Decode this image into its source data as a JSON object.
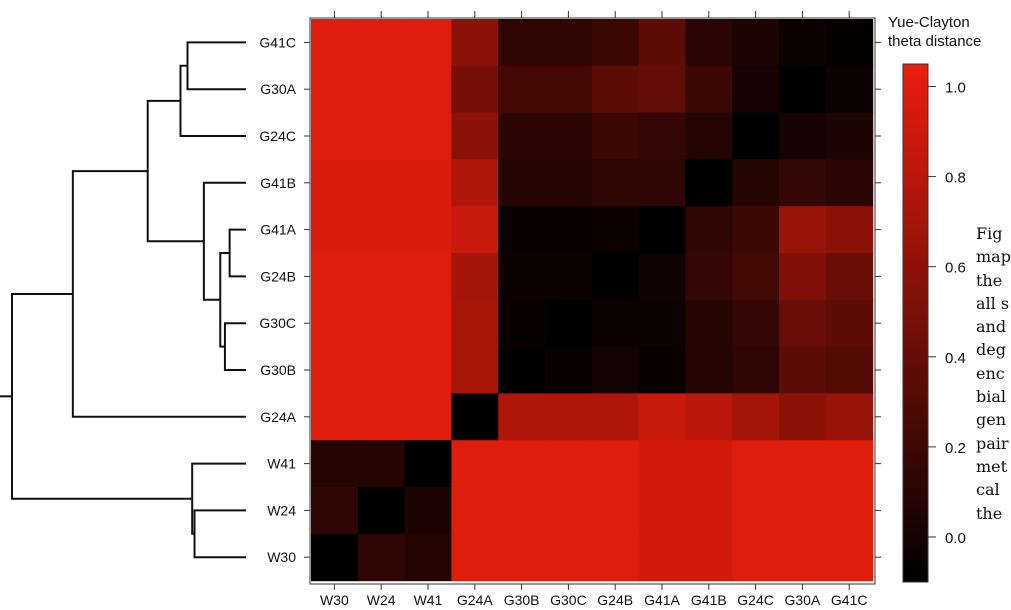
{
  "chart_data": {
    "type": "heatmap",
    "title": "",
    "xlabel": "",
    "ylabel": "",
    "columns": [
      "W30",
      "W24",
      "W41",
      "G24A",
      "G30B",
      "G30C",
      "G24B",
      "G41A",
      "G41B",
      "G24C",
      "G30A",
      "G41C"
    ],
    "rows": [
      "G41C",
      "G30A",
      "G24C",
      "G41B",
      "G41A",
      "G24B",
      "G30C",
      "G30B",
      "G24A",
      "W41",
      "W24",
      "W30"
    ],
    "values": [
      [
        0.95,
        0.95,
        0.95,
        0.6,
        0.2,
        0.2,
        0.25,
        0.4,
        0.18,
        0.12,
        0.05,
        0.02
      ],
      [
        0.95,
        0.95,
        0.95,
        0.5,
        0.28,
        0.28,
        0.4,
        0.42,
        0.25,
        0.1,
        0.0,
        0.05
      ],
      [
        0.95,
        0.95,
        0.95,
        0.6,
        0.18,
        0.18,
        0.25,
        0.22,
        0.15,
        0.0,
        0.1,
        0.12
      ],
      [
        0.93,
        0.93,
        0.93,
        0.75,
        0.15,
        0.15,
        0.2,
        0.2,
        0.0,
        0.15,
        0.22,
        0.18
      ],
      [
        0.93,
        0.93,
        0.93,
        0.85,
        0.04,
        0.04,
        0.06,
        0.0,
        0.2,
        0.25,
        0.65,
        0.6
      ],
      [
        0.95,
        0.95,
        0.95,
        0.7,
        0.06,
        0.05,
        0.0,
        0.07,
        0.22,
        0.28,
        0.55,
        0.45
      ],
      [
        0.95,
        0.95,
        0.95,
        0.72,
        0.04,
        0.0,
        0.06,
        0.05,
        0.16,
        0.22,
        0.45,
        0.4
      ],
      [
        0.95,
        0.95,
        0.95,
        0.72,
        0.0,
        0.04,
        0.08,
        0.04,
        0.16,
        0.2,
        0.4,
        0.35
      ],
      [
        0.95,
        0.95,
        0.95,
        0.0,
        0.75,
        0.75,
        0.75,
        0.85,
        0.8,
        0.7,
        0.6,
        0.65
      ],
      [
        0.15,
        0.15,
        0.0,
        0.95,
        0.95,
        0.95,
        0.95,
        0.9,
        0.9,
        0.95,
        0.95,
        0.95
      ],
      [
        0.2,
        0.0,
        0.12,
        0.95,
        0.95,
        0.95,
        0.95,
        0.9,
        0.9,
        0.95,
        0.95,
        0.95
      ],
      [
        0.0,
        0.2,
        0.15,
        0.95,
        0.95,
        0.95,
        0.95,
        0.9,
        0.9,
        0.95,
        0.95,
        0.95
      ]
    ],
    "colorbar": {
      "title": [
        "Yue-Clayton",
        "theta distance"
      ],
      "range": [
        -0.1,
        1.05
      ],
      "ticks": [
        "0.0",
        "0.2",
        "0.4",
        "0.6",
        "0.8",
        "1.0"
      ],
      "colors": [
        "#000000",
        "#ea1e0e"
      ]
    },
    "dendrogram": {
      "side": "left",
      "merges": [
        {
          "a": "G41A",
          "b": "G24B",
          "height": 0.07
        },
        {
          "a": "G30C",
          "b": "G30B",
          "height": 0.09
        },
        {
          "a": "m1",
          "b": "m2",
          "height": 0.11
        },
        {
          "a": "G41B",
          "b": "m3",
          "height": 0.18
        },
        {
          "a": "G41C",
          "b": "G30A",
          "height": 0.25
        },
        {
          "a": "m5",
          "b": "G24C",
          "height": 0.28
        },
        {
          "a": "m6",
          "b": "m4",
          "height": 0.42
        },
        {
          "a": "m7",
          "b": "G24A",
          "height": 0.74
        },
        {
          "a": "W24",
          "b": "W30",
          "height": 0.22
        },
        {
          "a": "W41",
          "b": "m9",
          "height": 0.23
        },
        {
          "a": "m8",
          "b": "m10",
          "height": 1.0
        }
      ]
    }
  },
  "side_text": [
    "Fig",
    "map",
    "the",
    "all s",
    "and",
    "deg",
    "enc",
    "bial",
    "gen",
    "pair",
    "met",
    "cal",
    "the"
  ]
}
